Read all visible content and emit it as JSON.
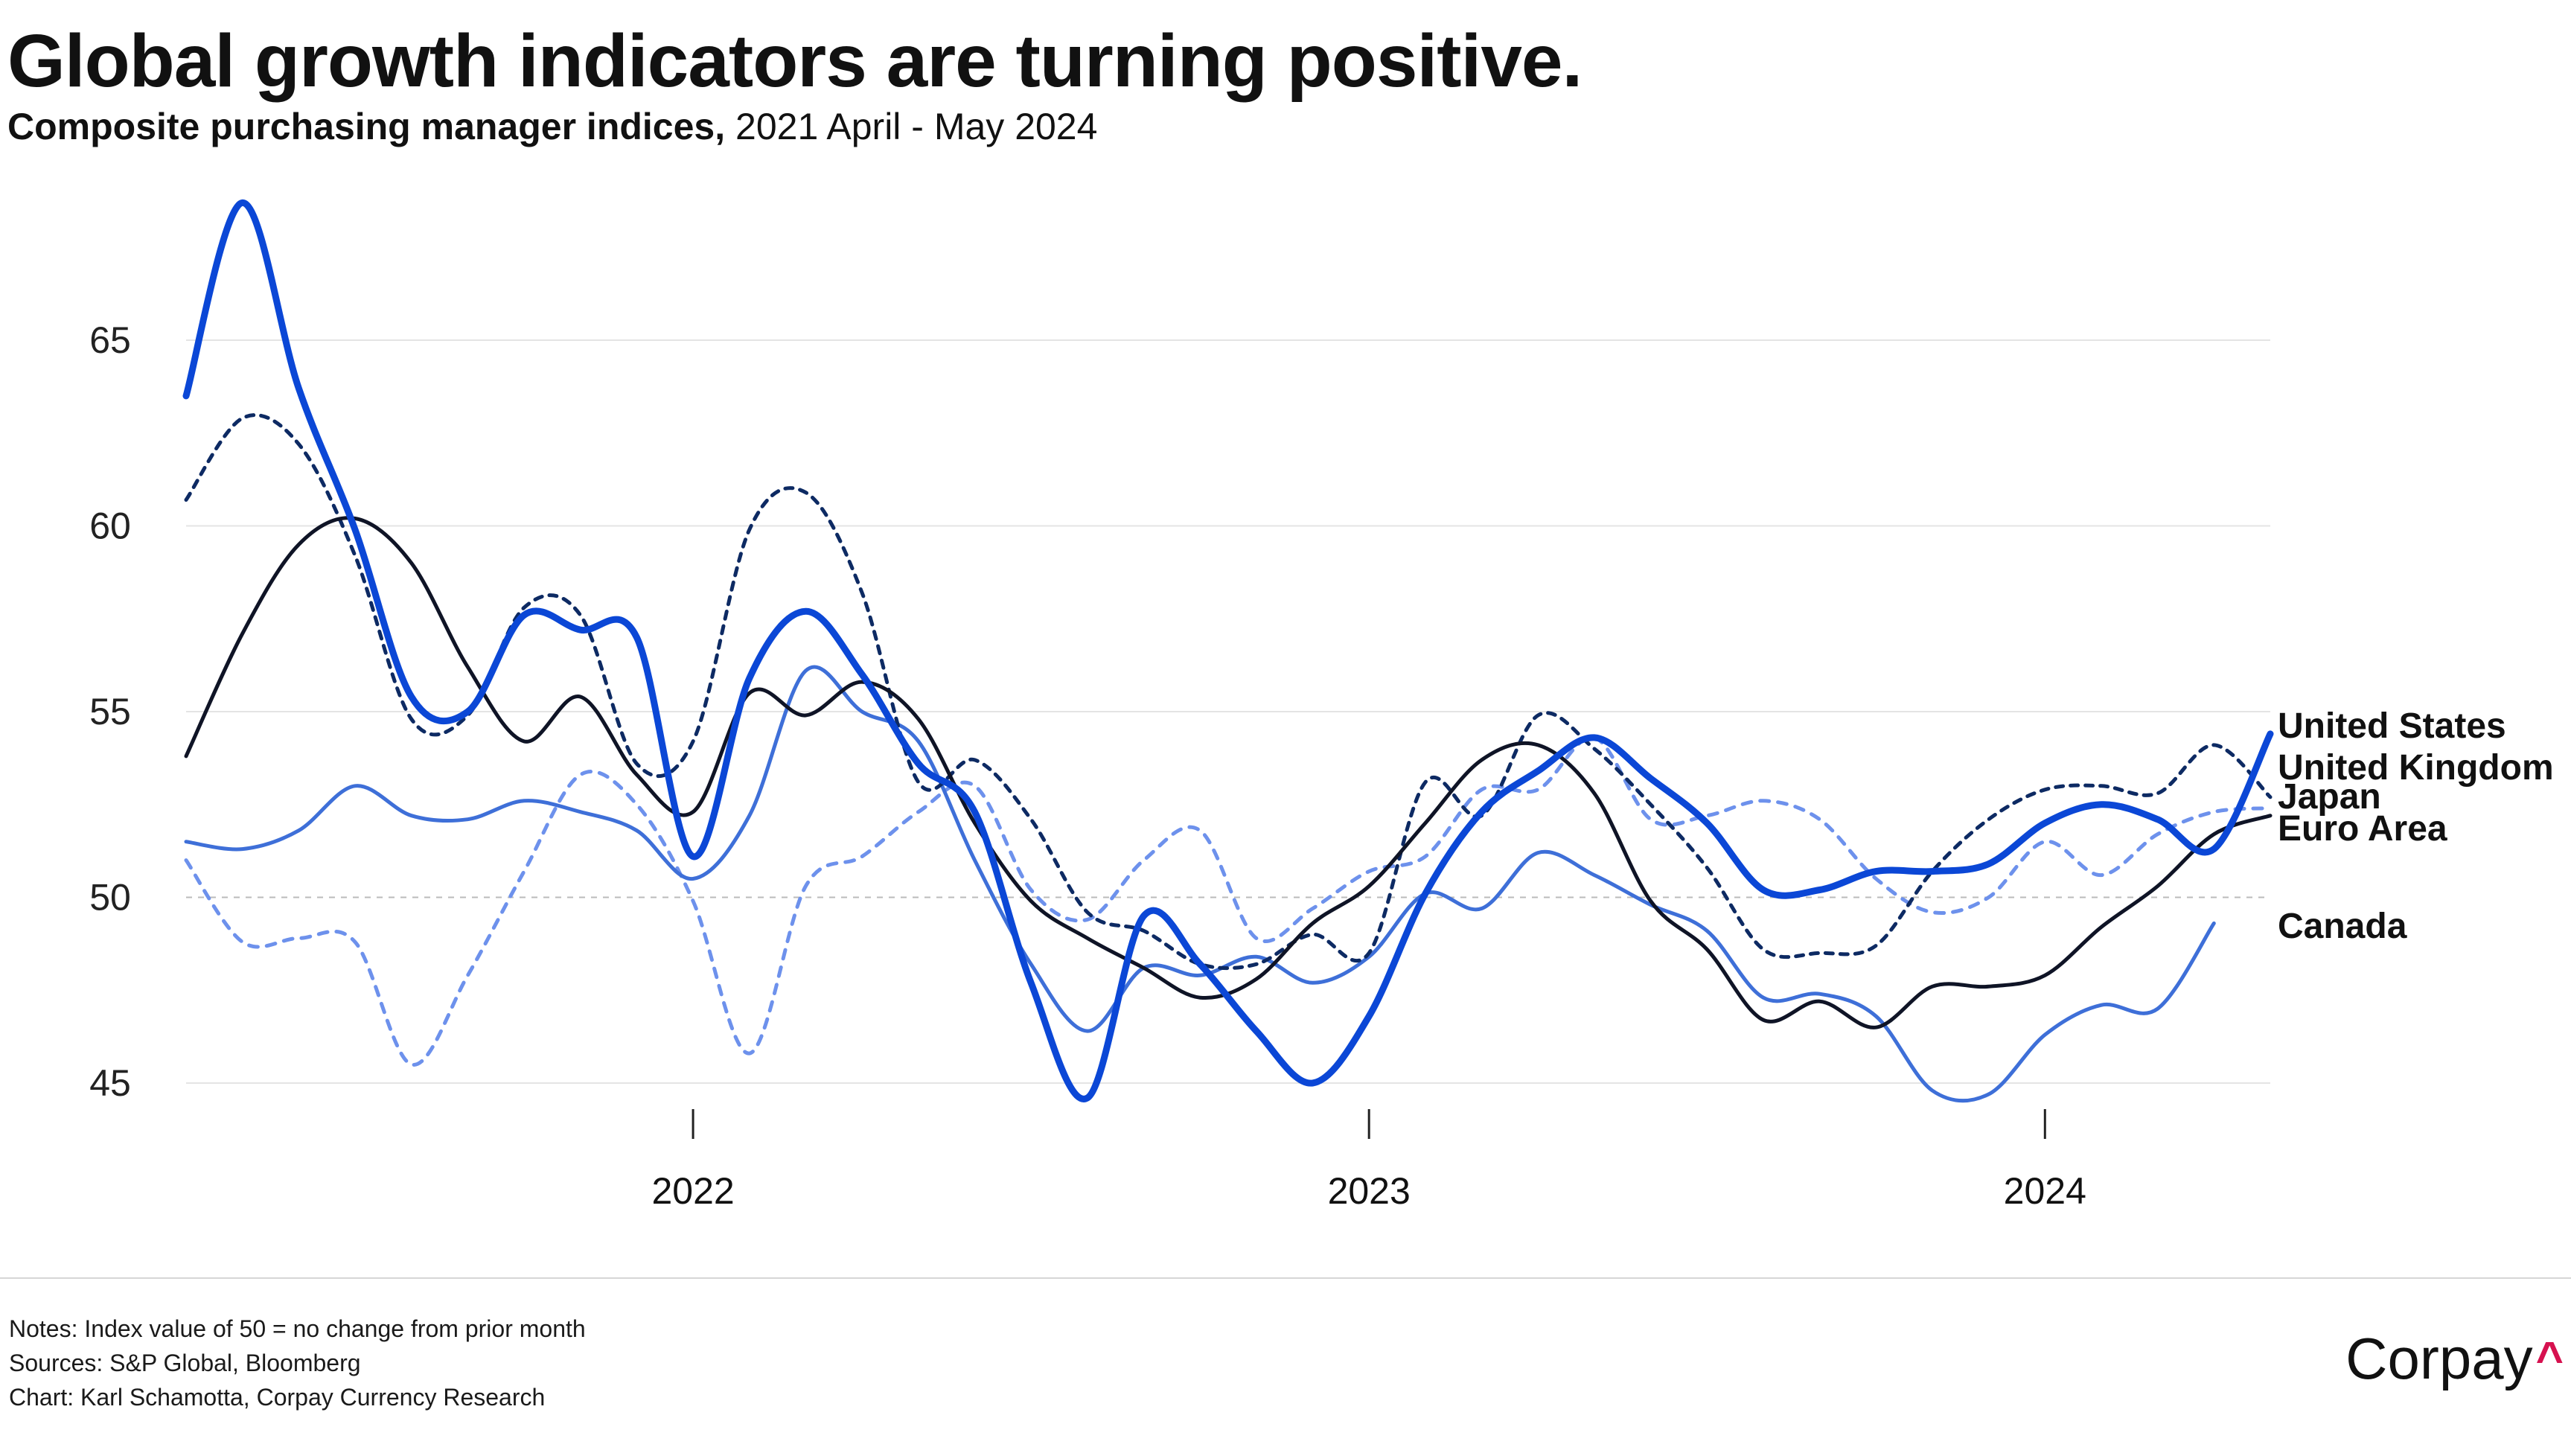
{
  "header": {
    "title": "Global growth indicators are turning positive.",
    "subtitle_strong": "Composite purchasing manager indices,",
    "subtitle_rest": " 2021 April - May 2024"
  },
  "footer": {
    "notes": "Notes: Index value of 50 = no change from prior month",
    "sources": "Sources: S&P Global, Bloomberg",
    "credit": "Chart: Karl Schamotta, Corpay Currency Research"
  },
  "brand": {
    "name": "Corpay",
    "caret": "^",
    "caret_color": "#d6114f"
  },
  "chart_data": {
    "type": "line",
    "xlabel": "",
    "ylabel": "",
    "x_axis_kind": "date",
    "x_start": "2021-04",
    "x_end": "2024-05",
    "x_ticks": [
      "2022",
      "2023",
      "2024"
    ],
    "y_ticks": [
      45,
      50,
      55,
      60,
      65
    ],
    "ylim": [
      43.5,
      69.5
    ],
    "reference_line": {
      "value": 50,
      "style": "dashed",
      "color": "#bbbbbb"
    },
    "grid": true,
    "legend": "direct labels at right end of each series",
    "months": [
      "2021-04",
      "2021-05",
      "2021-06",
      "2021-07",
      "2021-08",
      "2021-09",
      "2021-10",
      "2021-11",
      "2021-12",
      "2022-01",
      "2022-02",
      "2022-03",
      "2022-04",
      "2022-05",
      "2022-06",
      "2022-07",
      "2022-08",
      "2022-09",
      "2022-10",
      "2022-11",
      "2022-12",
      "2023-01",
      "2023-02",
      "2023-03",
      "2023-04",
      "2023-05",
      "2023-06",
      "2023-07",
      "2023-08",
      "2023-09",
      "2023-10",
      "2023-11",
      "2023-12",
      "2024-01",
      "2024-02",
      "2024-03",
      "2024-04",
      "2024-05"
    ],
    "series": [
      {
        "name": "United States",
        "color": "#0b47d6",
        "width": 9,
        "dash": "none",
        "values": [
          63.5,
          68.7,
          63.7,
          59.9,
          55.4,
          55.0,
          57.6,
          57.2,
          57.0,
          51.1,
          55.9,
          57.7,
          56.0,
          53.6,
          52.3,
          47.7,
          44.6,
          49.5,
          48.2,
          46.4,
          45.0,
          46.8,
          50.1,
          52.3,
          53.4,
          54.3,
          53.2,
          52.0,
          50.2,
          50.2,
          50.7,
          50.7,
          50.9,
          52.0,
          52.5,
          52.1,
          51.3,
          54.4
        ]
      },
      {
        "name": "United Kingdom",
        "color": "#0d2a63",
        "width": 5,
        "dash": "10,10",
        "values": [
          60.7,
          62.9,
          62.2,
          59.2,
          54.8,
          54.9,
          57.8,
          57.6,
          53.6,
          54.2,
          59.9,
          60.9,
          58.2,
          53.1,
          53.7,
          52.1,
          49.6,
          49.1,
          48.2,
          48.2,
          49.0,
          48.5,
          53.1,
          52.2,
          54.9,
          54.0,
          52.5,
          50.8,
          48.6,
          48.5,
          48.7,
          50.7,
          52.1,
          52.9,
          53.0,
          52.8,
          54.1,
          52.7
        ]
      },
      {
        "name": "Japan",
        "color": "#6d91ec",
        "width": 5,
        "dash": "12,12",
        "values": [
          51.0,
          48.8,
          48.9,
          48.8,
          45.5,
          47.9,
          50.7,
          53.3,
          52.5,
          49.9,
          45.8,
          50.3,
          51.1,
          52.3,
          53.0,
          50.2,
          49.4,
          51.0,
          51.8,
          48.9,
          49.7,
          50.7,
          51.1,
          52.9,
          52.9,
          54.3,
          52.1,
          52.2,
          52.6,
          52.1,
          50.5,
          49.6,
          50.0,
          51.5,
          50.6,
          51.7,
          52.3,
          52.4
        ]
      },
      {
        "name": "Euro Area",
        "color": "#0f1426",
        "width": 5,
        "dash": "none",
        "values": [
          53.8,
          57.1,
          59.5,
          60.2,
          59.0,
          56.2,
          54.2,
          55.4,
          53.3,
          52.3,
          55.5,
          54.9,
          55.8,
          54.8,
          52.0,
          49.9,
          48.9,
          48.1,
          47.3,
          47.8,
          49.3,
          50.3,
          52.0,
          53.7,
          54.1,
          52.8,
          49.9,
          48.6,
          46.7,
          47.2,
          46.5,
          47.6,
          47.6,
          47.9,
          49.2,
          50.3,
          51.7,
          52.2
        ]
      },
      {
        "name": "Canada",
        "color": "#3e6fd8",
        "width": 5,
        "dash": "none",
        "values": [
          51.5,
          51.3,
          51.8,
          53.0,
          52.2,
          52.1,
          52.6,
          52.3,
          51.8,
          50.5,
          52.2,
          56.1,
          55.0,
          54.2,
          51.0,
          48.2,
          46.4,
          48.1,
          47.9,
          48.4,
          47.7,
          48.4,
          50.1,
          49.7,
          51.2,
          50.6,
          49.8,
          49.1,
          47.3,
          47.4,
          46.8,
          44.8,
          44.7,
          46.3,
          47.1,
          47.0,
          49.3,
          null
        ]
      }
    ]
  }
}
